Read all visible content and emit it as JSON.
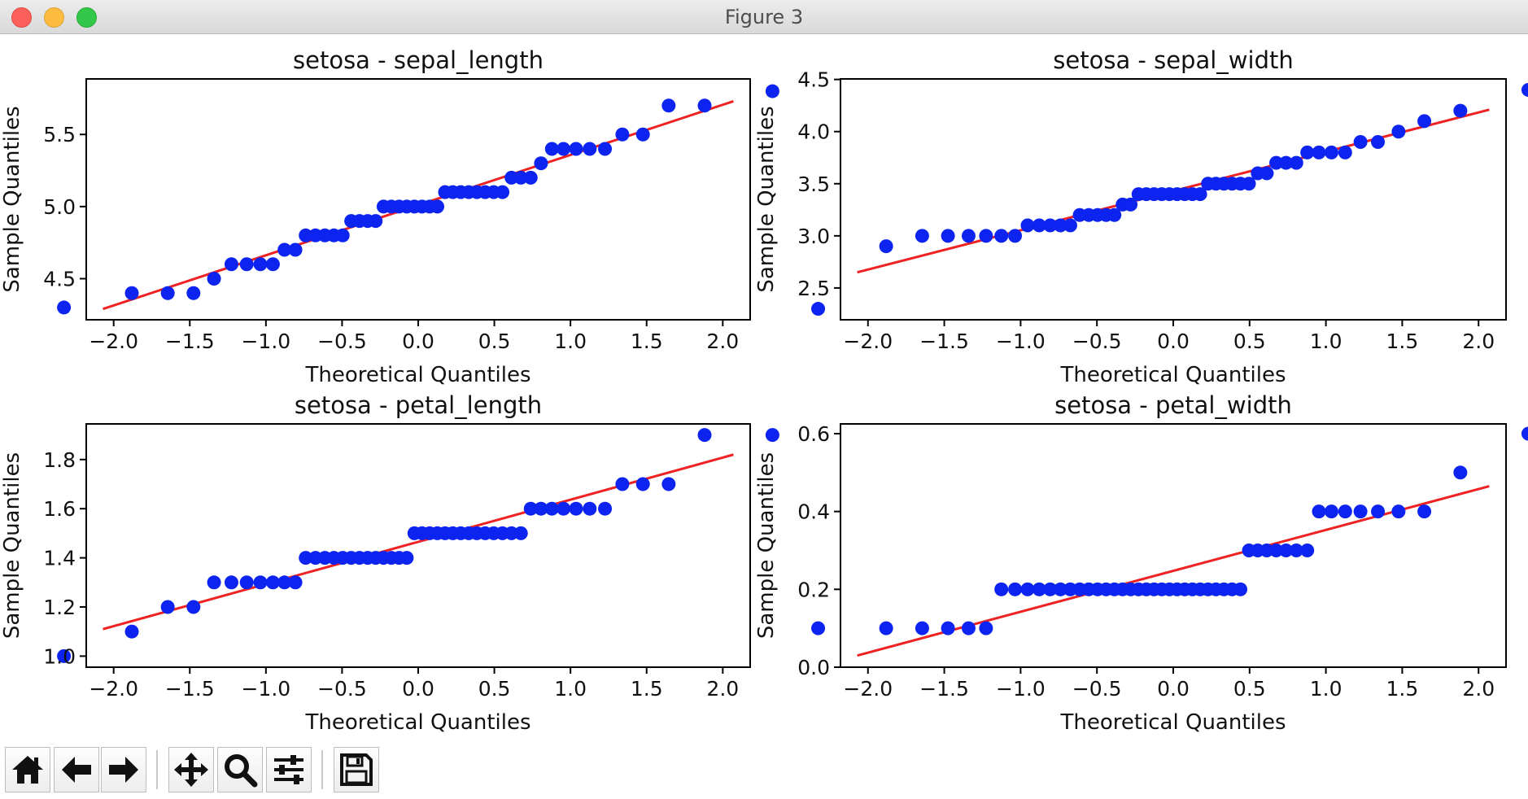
{
  "window": {
    "title": "Figure 3"
  },
  "toolbar": {
    "buttons": [
      {
        "icon": "home-icon"
      },
      {
        "icon": "back-arrow-icon"
      },
      {
        "icon": "forward-arrow-icon"
      },
      {
        "icon": "pan-icon"
      },
      {
        "icon": "zoom-icon"
      },
      {
        "icon": "configure-subplots-icon"
      },
      {
        "icon": "save-icon"
      }
    ]
  },
  "colors": {
    "points": "#0d24f0",
    "line": "#ee2222"
  },
  "chart_data": [
    {
      "type": "scatter",
      "title": "setosa - sepal_length",
      "xlabel": "Theoretical Quantiles",
      "ylabel": "Sample Quantiles",
      "xlim": [
        -2.18,
        2.18
      ],
      "ylim": [
        4.215,
        5.885
      ],
      "xticks": [
        -2.0,
        -1.5,
        -1.0,
        -0.5,
        0.0,
        0.5,
        1.0,
        1.5,
        2.0
      ],
      "xtick_labels": [
        "−2.0",
        "−1.5",
        "−1.0",
        "−0.5",
        "0.0",
        "0.5",
        "1.0",
        "1.5",
        "2.0"
      ],
      "yticks": [
        4.5,
        5.0,
        5.5
      ],
      "ytick_labels": [
        "4.5",
        "5.0",
        "5.5"
      ],
      "series": [
        {
          "values": [
            4.3,
            4.4,
            4.4,
            4.4,
            4.5,
            4.6,
            4.6,
            4.6,
            4.6,
            4.7,
            4.7,
            4.8,
            4.8,
            4.8,
            4.8,
            4.8,
            4.9,
            4.9,
            4.9,
            4.9,
            5.0,
            5.0,
            5.0,
            5.0,
            5.0,
            5.0,
            5.0,
            5.0,
            5.1,
            5.1,
            5.1,
            5.1,
            5.1,
            5.1,
            5.1,
            5.1,
            5.2,
            5.2,
            5.2,
            5.3,
            5.4,
            5.4,
            5.4,
            5.4,
            5.4,
            5.5,
            5.5,
            5.7,
            5.7,
            5.8
          ]
        }
      ],
      "fit_line": {
        "x": [
          -2.07,
          2.07
        ],
        "y": [
          4.29,
          5.73
        ]
      }
    },
    {
      "type": "scatter",
      "title": "setosa - sepal_width",
      "xlabel": "Theoretical Quantiles",
      "ylabel": "Sample Quantiles",
      "xlim": [
        -2.18,
        2.18
      ],
      "ylim": [
        2.195,
        4.505
      ],
      "xticks": [
        -2.0,
        -1.5,
        -1.0,
        -0.5,
        0.0,
        0.5,
        1.0,
        1.5,
        2.0
      ],
      "xtick_labels": [
        "−2.0",
        "−1.5",
        "−1.0",
        "−0.5",
        "0.0",
        "0.5",
        "1.0",
        "1.5",
        "2.0"
      ],
      "yticks": [
        2.5,
        3.0,
        3.5,
        4.0,
        4.5
      ],
      "ytick_labels": [
        "2.5",
        "3.0",
        "3.5",
        "4.0",
        "4.5"
      ],
      "series": [
        {
          "values": [
            2.3,
            2.9,
            3.0,
            3.0,
            3.0,
            3.0,
            3.0,
            3.0,
            3.1,
            3.1,
            3.1,
            3.1,
            3.1,
            3.2,
            3.2,
            3.2,
            3.2,
            3.2,
            3.3,
            3.3,
            3.4,
            3.4,
            3.4,
            3.4,
            3.4,
            3.4,
            3.4,
            3.4,
            3.4,
            3.5,
            3.5,
            3.5,
            3.5,
            3.5,
            3.5,
            3.6,
            3.6,
            3.7,
            3.7,
            3.7,
            3.8,
            3.8,
            3.8,
            3.8,
            3.9,
            3.9,
            4.0,
            4.1,
            4.2,
            4.4
          ]
        }
      ],
      "fit_line": {
        "x": [
          -2.07,
          2.07
        ],
        "y": [
          2.65,
          4.21
        ]
      }
    },
    {
      "type": "scatter",
      "title": "setosa - petal_length",
      "xlabel": "Theoretical Quantiles",
      "ylabel": "Sample Quantiles",
      "xlim": [
        -2.18,
        2.18
      ],
      "ylim": [
        0.955,
        1.945
      ],
      "xticks": [
        -2.0,
        -1.5,
        -1.0,
        -0.5,
        0.0,
        0.5,
        1.0,
        1.5,
        2.0
      ],
      "xtick_labels": [
        "−2.0",
        "−1.5",
        "−1.0",
        "−0.5",
        "0.0",
        "0.5",
        "1.0",
        "1.5",
        "2.0"
      ],
      "yticks": [
        1.0,
        1.2,
        1.4,
        1.6,
        1.8
      ],
      "ytick_labels": [
        "1.0",
        "1.2",
        "1.4",
        "1.6",
        "1.8"
      ],
      "series": [
        {
          "values": [
            1.0,
            1.1,
            1.2,
            1.2,
            1.3,
            1.3,
            1.3,
            1.3,
            1.3,
            1.3,
            1.3,
            1.4,
            1.4,
            1.4,
            1.4,
            1.4,
            1.4,
            1.4,
            1.4,
            1.4,
            1.4,
            1.4,
            1.4,
            1.4,
            1.5,
            1.5,
            1.5,
            1.5,
            1.5,
            1.5,
            1.5,
            1.5,
            1.5,
            1.5,
            1.5,
            1.5,
            1.5,
            1.5,
            1.6,
            1.6,
            1.6,
            1.6,
            1.6,
            1.6,
            1.6,
            1.7,
            1.7,
            1.7,
            1.9,
            1.9
          ]
        }
      ],
      "fit_line": {
        "x": [
          -2.07,
          2.07
        ],
        "y": [
          1.11,
          1.82
        ]
      }
    },
    {
      "type": "scatter",
      "title": "setosa - petal_width",
      "xlabel": "Theoretical Quantiles",
      "ylabel": "Sample Quantiles",
      "xlim": [
        -2.18,
        2.18
      ],
      "ylim": [
        0.0,
        0.625
      ],
      "xticks": [
        -2.0,
        -1.5,
        -1.0,
        -0.5,
        0.0,
        0.5,
        1.0,
        1.5,
        2.0
      ],
      "xtick_labels": [
        "−2.0",
        "−1.5",
        "−1.0",
        "−0.5",
        "0.0",
        "0.5",
        "1.0",
        "1.5",
        "2.0"
      ],
      "yticks": [
        0.0,
        0.2,
        0.4,
        0.6
      ],
      "ytick_labels": [
        "0.0",
        "0.2",
        "0.4",
        "0.6"
      ],
      "series": [
        {
          "values": [
            0.1,
            0.1,
            0.1,
            0.1,
            0.1,
            0.1,
            0.2,
            0.2,
            0.2,
            0.2,
            0.2,
            0.2,
            0.2,
            0.2,
            0.2,
            0.2,
            0.2,
            0.2,
            0.2,
            0.2,
            0.2,
            0.2,
            0.2,
            0.2,
            0.2,
            0.2,
            0.2,
            0.2,
            0.2,
            0.2,
            0.2,
            0.2,
            0.2,
            0.2,
            0.3,
            0.3,
            0.3,
            0.3,
            0.3,
            0.3,
            0.3,
            0.4,
            0.4,
            0.4,
            0.4,
            0.4,
            0.4,
            0.4,
            0.5,
            0.6
          ]
        }
      ],
      "fit_line": {
        "x": [
          -2.07,
          2.07
        ],
        "y": [
          0.03,
          0.465
        ]
      }
    }
  ]
}
